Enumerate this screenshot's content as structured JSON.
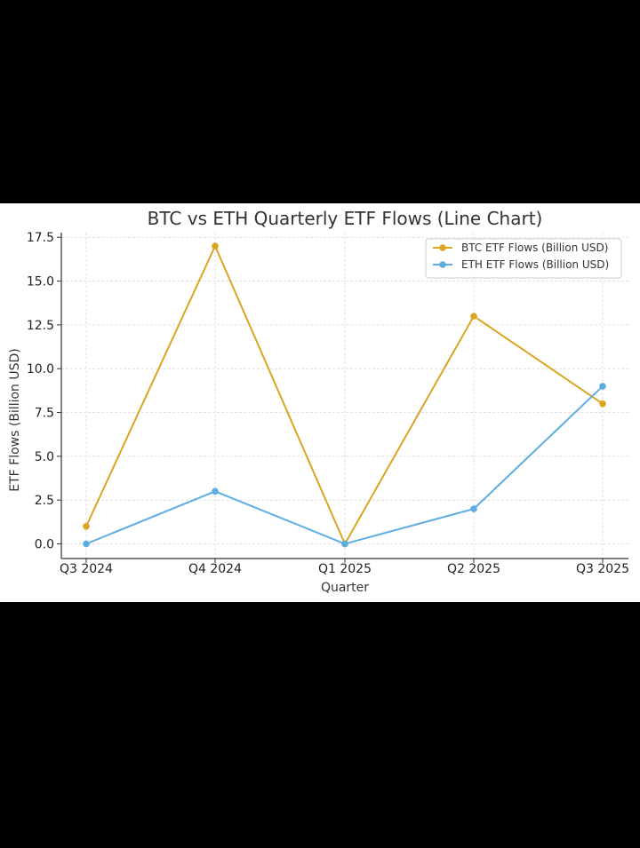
{
  "chart_data": {
    "type": "line",
    "title": "BTC vs ETH Quarterly ETF Flows (Line Chart)",
    "xlabel": "Quarter",
    "ylabel": "ETF Flows (Billion USD)",
    "categories": [
      "Q3 2024",
      "Q4 2024",
      "Q1 2025",
      "Q2 2025",
      "Q3 2025"
    ],
    "ylim": [
      -0.8,
      17.9
    ],
    "yticks": [
      0.0,
      2.5,
      5.0,
      7.5,
      10.0,
      12.5,
      15.0,
      17.5
    ],
    "ytick_labels": [
      "0.0",
      "2.5",
      "5.0",
      "7.5",
      "10.0",
      "12.5",
      "15.0",
      "17.5"
    ],
    "grid": true,
    "legend_position": "top-right",
    "series": [
      {
        "name": "BTC ETF Flows (Billion USD)",
        "color": "#DAA520",
        "values": [
          1,
          17,
          0,
          13,
          8
        ]
      },
      {
        "name": "ETH ETF Flows (Billion USD)",
        "color": "#5DADE2",
        "values": [
          0,
          3,
          0,
          2,
          9
        ]
      }
    ]
  }
}
